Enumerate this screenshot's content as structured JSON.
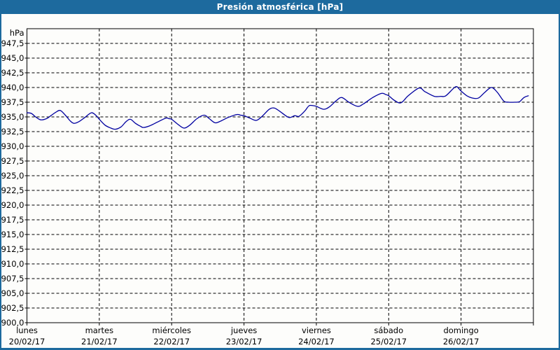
{
  "window": {
    "title": "Presión atmosférica [hPa]"
  },
  "colors": {
    "titlebar_bg": "#1d6a9e",
    "window_border": "#1d6a9e",
    "background": "#fdfdfb",
    "plot_background": "#fdfdfb",
    "axis": "#000000",
    "grid": "#000000",
    "text": "#000000",
    "title_text": "#ffffff",
    "line": "#0000a0"
  },
  "chart_data": {
    "type": "line",
    "title": "Presión atmosférica [hPa]",
    "legend": null,
    "grid": {
      "style": "dashed",
      "color": "#000000"
    },
    "y_axis": {
      "unit_label": "hPa",
      "min": 900.0,
      "max": 950.0,
      "tick_start": 900.0,
      "tick_end": 947.5,
      "tick_step": 2.5,
      "decimal_separator": ","
    },
    "x_axis": {
      "span_days": 7,
      "days": [
        {
          "name": "lunes",
          "date": "20/02/17"
        },
        {
          "name": "martes",
          "date": "21/02/17"
        },
        {
          "name": "miércoles",
          "date": "22/02/17"
        },
        {
          "name": "jueves",
          "date": "23/02/17"
        },
        {
          "name": "viernes",
          "date": "24/02/17"
        },
        {
          "name": "sábado",
          "date": "25/02/17"
        },
        {
          "name": "domingo",
          "date": "26/02/17"
        }
      ]
    },
    "series": [
      {
        "name": "presión atmosférica",
        "color": "#0000a0",
        "x_unit": "days_from_start",
        "y_unit": "hPa",
        "points": [
          [
            0.0,
            935.7
          ],
          [
            0.06,
            935.6
          ],
          [
            0.12,
            935.0
          ],
          [
            0.19,
            934.5
          ],
          [
            0.27,
            934.7
          ],
          [
            0.33,
            935.2
          ],
          [
            0.4,
            935.8
          ],
          [
            0.46,
            936.1
          ],
          [
            0.53,
            935.3
          ],
          [
            0.6,
            934.3
          ],
          [
            0.65,
            933.9
          ],
          [
            0.72,
            934.2
          ],
          [
            0.8,
            934.9
          ],
          [
            0.89,
            935.7
          ],
          [
            0.95,
            935.3
          ],
          [
            1.0,
            934.6
          ],
          [
            1.08,
            933.6
          ],
          [
            1.16,
            933.1
          ],
          [
            1.22,
            932.9
          ],
          [
            1.3,
            933.3
          ],
          [
            1.37,
            934.2
          ],
          [
            1.43,
            934.6
          ],
          [
            1.5,
            933.9
          ],
          [
            1.57,
            933.4
          ],
          [
            1.61,
            933.2
          ],
          [
            1.7,
            933.5
          ],
          [
            1.8,
            934.1
          ],
          [
            1.92,
            934.8
          ],
          [
            1.96,
            934.7
          ],
          [
            2.0,
            934.6
          ],
          [
            2.08,
            933.8
          ],
          [
            2.17,
            933.1
          ],
          [
            2.25,
            933.6
          ],
          [
            2.35,
            934.7
          ],
          [
            2.45,
            935.3
          ],
          [
            2.52,
            934.7
          ],
          [
            2.6,
            934.0
          ],
          [
            2.68,
            934.3
          ],
          [
            2.78,
            934.9
          ],
          [
            2.9,
            935.4
          ],
          [
            2.95,
            935.3
          ],
          [
            3.0,
            935.2
          ],
          [
            3.08,
            934.8
          ],
          [
            3.17,
            934.4
          ],
          [
            3.25,
            935.1
          ],
          [
            3.35,
            936.3
          ],
          [
            3.42,
            936.5
          ],
          [
            3.5,
            935.9
          ],
          [
            3.62,
            934.9
          ],
          [
            3.7,
            935.2
          ],
          [
            3.76,
            935.1
          ],
          [
            3.84,
            936.0
          ],
          [
            3.9,
            936.9
          ],
          [
            3.96,
            936.9
          ],
          [
            4.0,
            936.8
          ],
          [
            4.1,
            936.3
          ],
          [
            4.18,
            936.7
          ],
          [
            4.27,
            937.7
          ],
          [
            4.35,
            938.3
          ],
          [
            4.45,
            937.5
          ],
          [
            4.57,
            936.8
          ],
          [
            4.65,
            937.2
          ],
          [
            4.78,
            938.3
          ],
          [
            4.9,
            939.0
          ],
          [
            4.96,
            938.8
          ],
          [
            5.0,
            938.6
          ],
          [
            5.08,
            937.8
          ],
          [
            5.17,
            937.4
          ],
          [
            5.27,
            938.6
          ],
          [
            5.42,
            939.9
          ],
          [
            5.5,
            939.3
          ],
          [
            5.63,
            938.5
          ],
          [
            5.72,
            938.5
          ],
          [
            5.79,
            938.6
          ],
          [
            5.92,
            940.1
          ],
          [
            5.97,
            939.8
          ],
          [
            6.0,
            939.4
          ],
          [
            6.08,
            938.6
          ],
          [
            6.16,
            938.2
          ],
          [
            6.24,
            938.2
          ],
          [
            6.33,
            939.2
          ],
          [
            6.42,
            940.0
          ],
          [
            6.5,
            939.2
          ],
          [
            6.59,
            937.7
          ],
          [
            6.66,
            937.5
          ],
          [
            6.75,
            937.5
          ],
          [
            6.81,
            937.6
          ],
          [
            6.87,
            938.3
          ],
          [
            6.93,
            938.6
          ]
        ]
      }
    ]
  }
}
